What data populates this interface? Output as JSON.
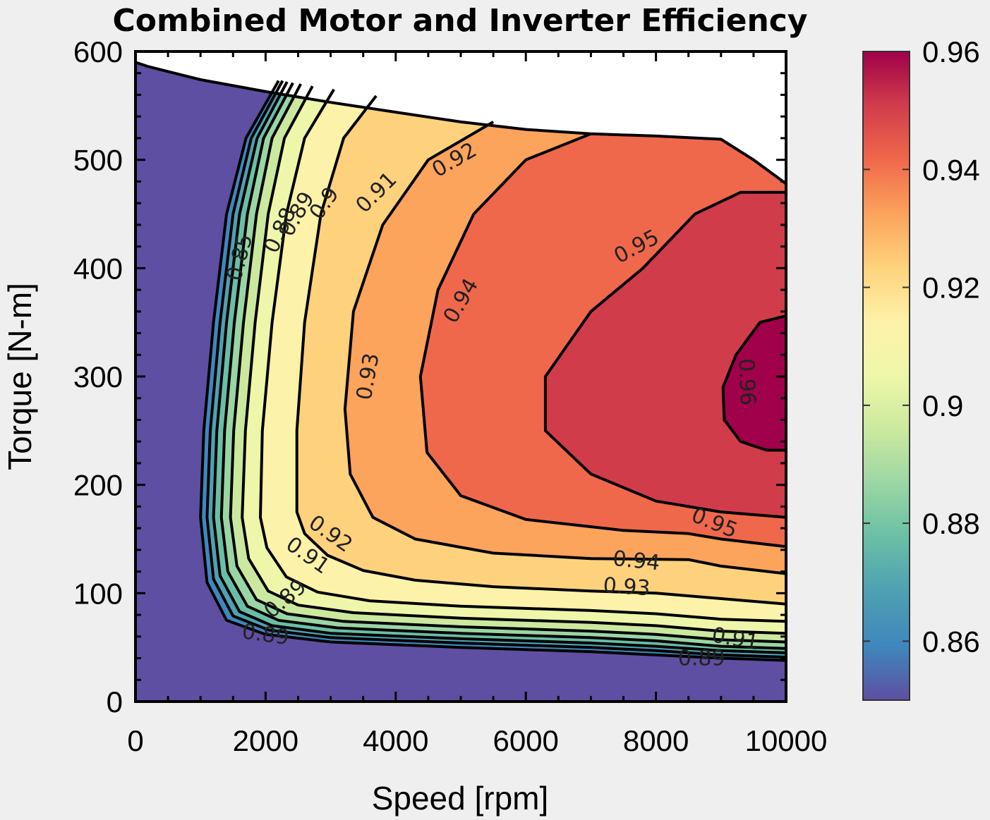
{
  "chart_data": {
    "type": "contour",
    "title": "Combined Motor and Inverter Efficiency",
    "xlabel": "Speed [rpm]",
    "ylabel": "Torque [N-m]",
    "xlim": [
      0,
      10000
    ],
    "ylim": [
      0,
      600
    ],
    "xticks": [
      0,
      2000,
      4000,
      6000,
      8000,
      10000
    ],
    "xtick_labels": [
      "0",
      "2000",
      "4000",
      "6000",
      "8000",
      "10000"
    ],
    "yticks": [
      0,
      100,
      200,
      300,
      400,
      500,
      600
    ],
    "ytick_labels": [
      "0",
      "100",
      "200",
      "300",
      "400",
      "500",
      "600"
    ],
    "grid": true,
    "colormap": "Spectral",
    "colorbar": {
      "range": [
        0.85,
        0.96
      ],
      "ticks": [
        0.86,
        0.88,
        0.9,
        0.92,
        0.94,
        0.96
      ],
      "tick_labels": [
        "0.86",
        "0.88",
        "0.9",
        "0.92",
        "0.94",
        "0.96"
      ]
    },
    "operating_envelope": [
      [
        0,
        590
      ],
      [
        200,
        586
      ],
      [
        1000,
        574
      ],
      [
        2000,
        563
      ],
      [
        3000,
        553
      ],
      [
        4000,
        544
      ],
      [
        5000,
        535
      ],
      [
        6000,
        528
      ],
      [
        7000,
        524
      ],
      [
        8000,
        522
      ],
      [
        9000,
        519
      ],
      [
        9500,
        500
      ],
      [
        10000,
        478
      ]
    ],
    "contour_levels": [
      0.85,
      0.86,
      0.87,
      0.88,
      0.89,
      0.9,
      0.91,
      0.92,
      0.93,
      0.94,
      0.95,
      0.96
    ],
    "fill_colors": [
      "#5e4fa2",
      "#3f87bd",
      "#4fa0b2",
      "#69bfa6",
      "#9ad6a4",
      "#cbe99e",
      "#eef7a9",
      "#fdf2a9",
      "#fed27d",
      "#fca35c",
      "#f0684b",
      "#d13c4b",
      "#a1004a"
    ],
    "contours": [
      {
        "level": 0.85,
        "points": [
          [
            2200,
            573
          ],
          [
            1700,
            520
          ],
          [
            1400,
            450
          ],
          [
            1200,
            350
          ],
          [
            1050,
            250
          ],
          [
            1000,
            170
          ],
          [
            1100,
            110
          ],
          [
            1400,
            75
          ],
          [
            2000,
            62
          ],
          [
            3000,
            55
          ],
          [
            5000,
            50
          ],
          [
            7000,
            46
          ],
          [
            8000,
            43
          ],
          [
            9000,
            40
          ],
          [
            10000,
            38
          ]
        ]
      },
      {
        "level": 0.86,
        "points": [
          [
            2260,
            573
          ],
          [
            1780,
            520
          ],
          [
            1500,
            450
          ],
          [
            1300,
            350
          ],
          [
            1150,
            250
          ],
          [
            1100,
            170
          ],
          [
            1200,
            113
          ],
          [
            1500,
            79
          ],
          [
            2050,
            66
          ],
          [
            3000,
            59
          ],
          [
            5000,
            54
          ],
          [
            7000,
            50
          ],
          [
            8000,
            47
          ],
          [
            9000,
            43
          ],
          [
            10000,
            41
          ]
        ]
      },
      {
        "level": 0.87,
        "points": [
          [
            2330,
            572
          ],
          [
            1870,
            520
          ],
          [
            1600,
            450
          ],
          [
            1400,
            350
          ],
          [
            1250,
            250
          ],
          [
            1200,
            170
          ],
          [
            1300,
            116
          ],
          [
            1600,
            83
          ],
          [
            2100,
            70
          ],
          [
            3000,
            63
          ],
          [
            5000,
            58
          ],
          [
            7000,
            54
          ],
          [
            8000,
            51
          ],
          [
            9000,
            47
          ],
          [
            10000,
            45
          ]
        ]
      },
      {
        "level": 0.88,
        "points": [
          [
            2420,
            571
          ],
          [
            1970,
            520
          ],
          [
            1720,
            450
          ],
          [
            1520,
            350
          ],
          [
            1370,
            250
          ],
          [
            1320,
            170
          ],
          [
            1420,
            120
          ],
          [
            1720,
            88
          ],
          [
            2200,
            75
          ],
          [
            3100,
            68
          ],
          [
            5000,
            63
          ],
          [
            7000,
            59
          ],
          [
            8000,
            56
          ],
          [
            9000,
            51
          ],
          [
            10000,
            49
          ]
        ]
      },
      {
        "level": 0.89,
        "points": [
          [
            2540,
            570
          ],
          [
            2100,
            520
          ],
          [
            1860,
            450
          ],
          [
            1660,
            350
          ],
          [
            1510,
            250
          ],
          [
            1460,
            170
          ],
          [
            1560,
            125
          ],
          [
            1860,
            94
          ],
          [
            2330,
            81
          ],
          [
            3200,
            74
          ],
          [
            5000,
            69
          ],
          [
            7000,
            65
          ],
          [
            8000,
            62
          ],
          [
            9000,
            57
          ],
          [
            10000,
            55
          ]
        ]
      },
      {
        "level": 0.9,
        "points": [
          [
            2720,
            568
          ],
          [
            2290,
            520
          ],
          [
            2040,
            450
          ],
          [
            1840,
            350
          ],
          [
            1690,
            250
          ],
          [
            1640,
            170
          ],
          [
            1740,
            132
          ],
          [
            2040,
            102
          ],
          [
            2500,
            89
          ],
          [
            3350,
            82
          ],
          [
            5000,
            77
          ],
          [
            7000,
            73
          ],
          [
            8000,
            70
          ],
          [
            9000,
            65
          ],
          [
            10000,
            63
          ]
        ]
      },
      {
        "level": 0.91,
        "points": [
          [
            3050,
            565
          ],
          [
            2600,
            520
          ],
          [
            2320,
            450
          ],
          [
            2100,
            350
          ],
          [
            1950,
            250
          ],
          [
            1920,
            170
          ],
          [
            2020,
            142
          ],
          [
            2320,
            115
          ],
          [
            2800,
            101
          ],
          [
            3600,
            93
          ],
          [
            5000,
            88
          ],
          [
            7000,
            84
          ],
          [
            8000,
            81
          ],
          [
            9000,
            76
          ],
          [
            10000,
            74
          ]
        ]
      },
      {
        "level": 0.92,
        "points": [
          [
            3700,
            559
          ],
          [
            3200,
            520
          ],
          [
            2850,
            450
          ],
          [
            2600,
            350
          ],
          [
            2480,
            250
          ],
          [
            2480,
            175
          ],
          [
            2600,
            155
          ],
          [
            2950,
            135
          ],
          [
            3500,
            121
          ],
          [
            4300,
            112
          ],
          [
            5500,
            106
          ],
          [
            7000,
            102
          ],
          [
            8000,
            100
          ],
          [
            9000,
            95
          ],
          [
            10000,
            90
          ]
        ]
      },
      {
        "level": 0.93,
        "points": [
          [
            5500,
            535
          ],
          [
            4500,
            500
          ],
          [
            3800,
            440
          ],
          [
            3350,
            360
          ],
          [
            3220,
            270
          ],
          [
            3300,
            210
          ],
          [
            3650,
            170
          ],
          [
            4300,
            150
          ],
          [
            5500,
            137
          ],
          [
            7000,
            132
          ],
          [
            8500,
            131
          ],
          [
            9000,
            125
          ],
          [
            10000,
            118
          ]
        ]
      },
      {
        "level": 0.94,
        "points": [
          [
            7000,
            524
          ],
          [
            6000,
            500
          ],
          [
            5200,
            450
          ],
          [
            4650,
            380
          ],
          [
            4380,
            300
          ],
          [
            4480,
            230
          ],
          [
            5000,
            190
          ],
          [
            6000,
            168
          ],
          [
            7500,
            158
          ],
          [
            8500,
            155
          ],
          [
            9000,
            150
          ],
          [
            10000,
            143
          ]
        ]
      },
      {
        "level": 0.95,
        "points": [
          [
            10000,
            470
          ],
          [
            9300,
            470
          ],
          [
            8600,
            450
          ],
          [
            7800,
            400
          ],
          [
            7000,
            360
          ],
          [
            6300,
            300
          ],
          [
            6300,
            250
          ],
          [
            7000,
            210
          ],
          [
            8000,
            185
          ],
          [
            9000,
            175
          ],
          [
            10000,
            170
          ]
        ]
      },
      {
        "level": 0.96,
        "points": [
          [
            10000,
            356
          ],
          [
            9600,
            350
          ],
          [
            9230,
            320
          ],
          [
            9030,
            290
          ],
          [
            9050,
            260
          ],
          [
            9300,
            240
          ],
          [
            9700,
            232
          ],
          [
            10000,
            232
          ]
        ]
      }
    ],
    "contour_labels": [
      {
        "text": "0.95",
        "x": 7700,
        "y": 420,
        "angle": -28
      },
      {
        "text": "0.94",
        "x": 5000,
        "y": 370,
        "angle": -60
      },
      {
        "text": "0.93",
        "x": 3570,
        "y": 300,
        "angle": -80
      },
      {
        "text": "0.92",
        "x": 4900,
        "y": 500,
        "angle": -30
      },
      {
        "text": "0.91",
        "x": 3700,
        "y": 470,
        "angle": -45
      },
      {
        "text": "0.9",
        "x": 2900,
        "y": 460,
        "angle": -55
      },
      {
        "text": "0.89",
        "x": 2480,
        "y": 450,
        "angle": -60
      },
      {
        "text": "0.88",
        "x": 2220,
        "y": 435,
        "angle": -65
      },
      {
        "text": "0.96",
        "x": 9400,
        "y": 295,
        "angle": 88
      },
      {
        "text": "0.95",
        "x": 8900,
        "y": 165,
        "angle": 22
      },
      {
        "text": "0.94",
        "x": 7700,
        "y": 130,
        "angle": 6
      },
      {
        "text": "0.93",
        "x": 7550,
        "y": 106,
        "angle": 4
      },
      {
        "text": "0.92",
        "x": 3000,
        "y": 155,
        "angle": 35
      },
      {
        "text": "0.91",
        "x": 2650,
        "y": 135,
        "angle": 35
      },
      {
        "text": "0.91",
        "x": 9220,
        "y": 58,
        "angle": 10
      },
      {
        "text": "0.89",
        "x": 2300,
        "y": 95,
        "angle": -40
      },
      {
        "text": "0.89",
        "x": 2000,
        "y": 62,
        "angle": 8
      },
      {
        "text": "0.89",
        "x": 8700,
        "y": 40,
        "angle": 0
      },
      {
        "text": "0.85",
        "x": 1600,
        "y": 410,
        "angle": -75
      }
    ]
  }
}
